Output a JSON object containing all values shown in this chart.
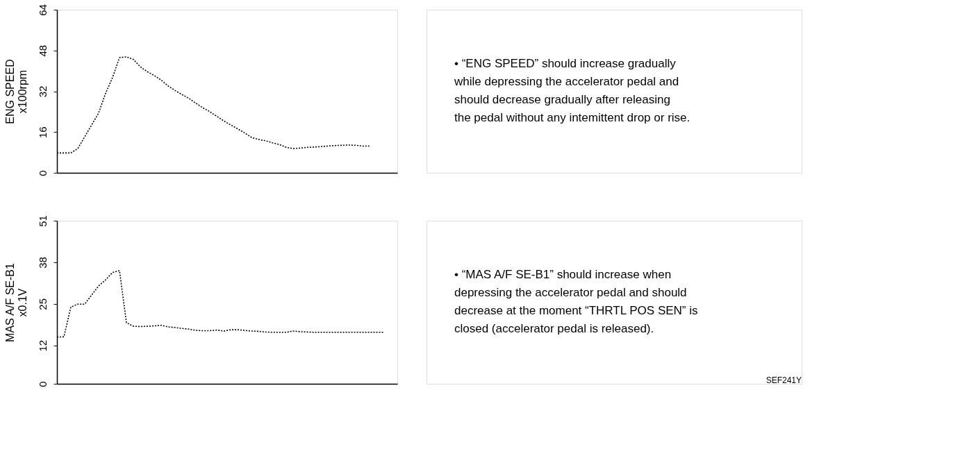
{
  "chart_data": [
    {
      "type": "line",
      "ylabel": "ENG SPEED\nx100rpm",
      "categories": [
        null,
        null,
        null,
        null,
        null,
        null,
        null,
        null,
        null,
        null,
        null,
        null,
        null,
        null,
        null,
        null,
        null,
        null,
        null,
        null,
        null,
        null,
        null,
        null,
        null,
        null,
        null,
        null,
        null,
        null,
        null,
        null,
        null,
        null,
        null,
        null,
        null,
        null,
        null,
        null,
        null,
        null,
        null,
        null,
        null,
        null,
        null,
        null,
        null,
        null
      ],
      "series": [
        {
          "color": "#000000",
          "values": [
            7.8,
            7.8,
            7.8,
            9.5,
            14.2,
            18.8,
            23.5,
            31.2,
            37.4,
            45.2,
            45.5,
            44.5,
            41.6,
            39.7,
            38.2,
            36.4,
            34.1,
            32.3,
            30.7,
            29.2,
            27.3,
            25.5,
            24.0,
            22.2,
            20.4,
            18.8,
            17.3,
            15.7,
            13.9,
            13.1,
            12.6,
            11.8,
            11.1,
            10.0,
            9.5,
            9.7,
            10.0,
            10.1,
            10.3,
            10.5,
            10.7,
            10.8,
            10.9,
            10.8,
            10.5,
            10.5,
            null,
            null,
            null,
            null
          ]
        }
      ],
      "ylim": [
        0,
        64
      ],
      "yticks": [
        0,
        16,
        32,
        48,
        64
      ],
      "grid": false,
      "tick_labels": "y",
      "marker": "none",
      "line_style": "dotted",
      "annotations": [
        "• “ENG SPEED” should increase gradually\n  while depressing the accelerator pedal and\n  should decrease gradually after releasing\n  the pedal without any intemittent drop or rise."
      ]
    },
    {
      "type": "line",
      "ylabel": "MAS A/F SE-B1\nx0.1V",
      "categories": [
        null,
        null,
        null,
        null,
        null,
        null,
        null,
        null,
        null,
        null,
        null,
        null,
        null,
        null,
        null,
        null,
        null,
        null,
        null,
        null,
        null,
        null,
        null,
        null,
        null,
        null,
        null,
        null,
        null,
        null,
        null,
        null,
        null,
        null,
        null,
        null,
        null,
        null,
        null,
        null,
        null,
        null,
        null,
        null,
        null,
        null,
        null,
        null,
        null,
        null
      ],
      "series": [
        {
          "color": "#000000",
          "values": [
            14.6,
            14.7,
            24.0,
            24.9,
            24.9,
            27.8,
            30.6,
            32.5,
            34.8,
            35.4,
            19.1,
            18.0,
            17.9,
            18.0,
            18.1,
            18.3,
            17.8,
            17.6,
            17.3,
            17.1,
            16.7,
            16.6,
            16.6,
            16.8,
            16.5,
            16.9,
            16.9,
            16.7,
            16.5,
            16.4,
            16.2,
            16.1,
            16.1,
            16.1,
            16.5,
            16.3,
            16.2,
            16.1,
            16.1,
            16.1,
            16.1,
            16.1,
            16.1,
            16.1,
            16.1,
            16.1,
            16.1,
            16.1,
            null,
            null
          ]
        }
      ],
      "ylim": [
        0,
        51
      ],
      "yticks": [
        0,
        12,
        25,
        38,
        51
      ],
      "grid": false,
      "tick_labels": "y",
      "marker": "none",
      "line_style": "dotted",
      "annotations": [
        "• “MAS A/F SE-B1” should increase when\n  depressing the accelerator pedal and  should\n  decrease at the moment “THRTL POS SEN” is\n  closed (accelerator pedal is released).",
        "SEF241Y"
      ]
    }
  ]
}
